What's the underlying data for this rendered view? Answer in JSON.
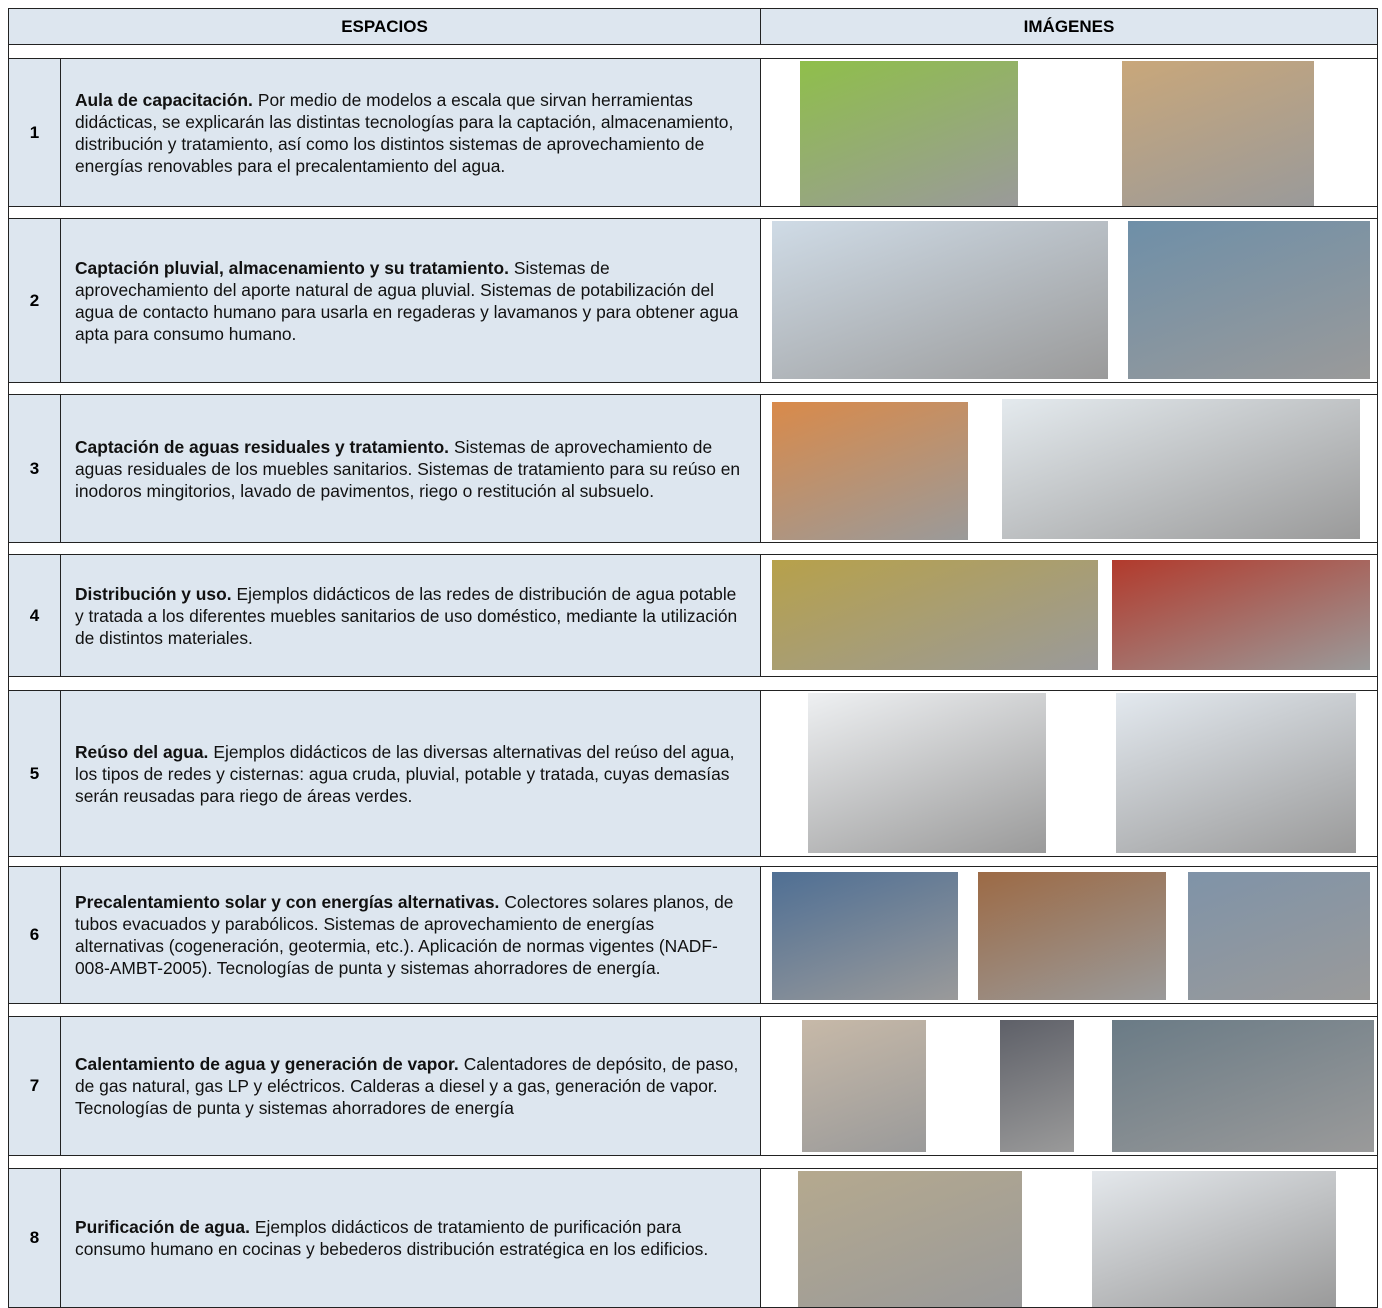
{
  "header": {
    "columns": [
      "ESPACIOS",
      "IMÁGENES"
    ]
  },
  "rows": [
    {
      "number": "1",
      "title": "Aula de capacitación.",
      "text": "Por medio de modelos a escala que sirvan herramientas didácticas, se explicarán las distintas tecnologías para la captación, almacenamiento, distribución y tratamiento, así como los distintos sistemas de aprovechamiento de energías renovables para el precalentamiento del agua."
    },
    {
      "number": "2",
      "title": "Captación pluvial, almacenamiento y su tratamiento.",
      "text": "Sistemas de aprovechamiento del aporte natural de agua pluvial. Sistemas de potabilización del agua de contacto humano para usarla en regaderas y lavamanos y para obtener agua apta para consumo humano."
    },
    {
      "number": "3",
      "title": "Captación de aguas residuales y tratamiento.",
      "text": "Sistemas de aprovechamiento de aguas residuales de los muebles sanitarios. Sistemas de tratamiento para su reúso en inodoros mingitorios, lavado de pavimentos, riego o restitución al subsuelo."
    },
    {
      "number": "4",
      "title": "Distribución y uso.",
      "text": "Ejemplos didácticos de las redes de distribución de agua potable y tratada a los diferentes muebles sanitarios de uso doméstico, mediante la utilización de distintos materiales."
    },
    {
      "number": "5",
      "title": "Reúso del agua.",
      "text": "Ejemplos didácticos de las diversas alternativas del reúso del agua, los tipos de redes y cisternas: agua cruda, pluvial, potable y tratada, cuyas demasías serán reusadas para riego de áreas verdes."
    },
    {
      "number": "6",
      "title": "Precalentamiento solar y con energías alternativas.",
      "text": "Colectores solares planos, de tubos evacuados y parabólicos. Sistemas de aprovechamiento de energías alternativas (cogeneración, geotermia, etc.). Aplicación de normas vigentes (NADF-008-AMBT-2005). Tecnologías de punta y sistemas ahorradores de energía."
    },
    {
      "number": "7",
      "title": "Calentamiento de agua y generación de vapor.",
      "text": "Calentadores de depósito, de paso, de gas natural, gas LP y eléctricos. Calderas a diesel y a gas, generación de vapor. Tecnologías de punta y sistemas ahorradores de energía"
    },
    {
      "number": "8",
      "title": "Purificación de agua.",
      "text": "Ejemplos didácticos de tratamiento de purificación para consumo humano en cocinas y bebederos distribución estratégica en los edificios."
    }
  ]
}
